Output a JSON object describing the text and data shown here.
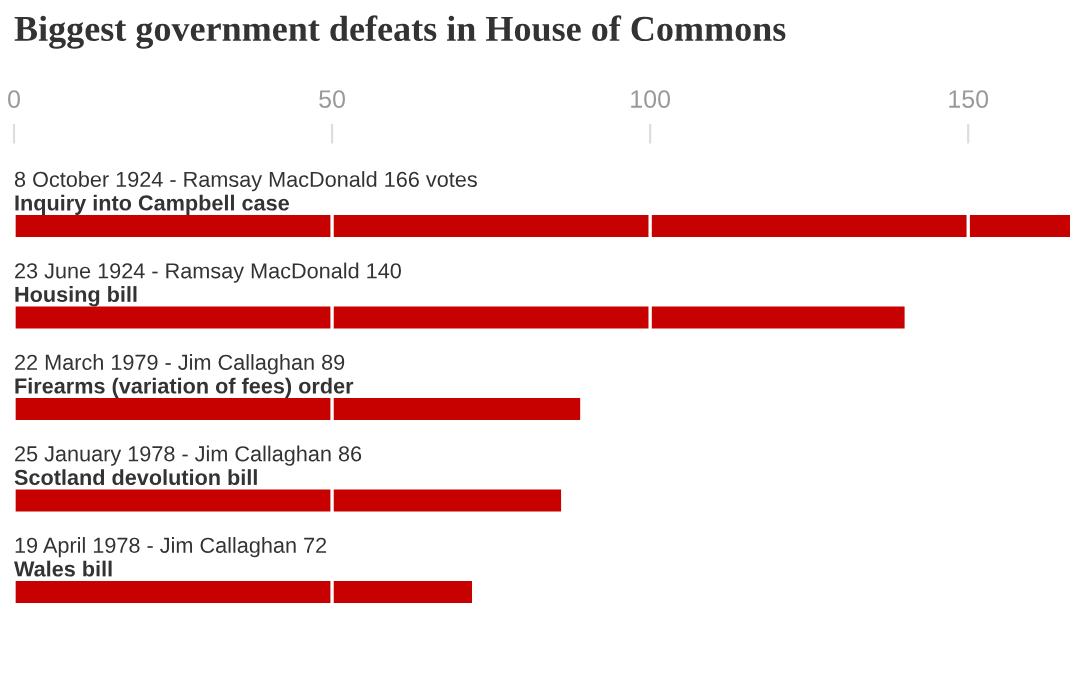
{
  "chart_data": {
    "type": "bar",
    "orientation": "horizontal",
    "title": "Biggest government defeats in House of Commons",
    "categories": [
      "8 October 1924 - Ramsay MacDonald 166 votes\nInquiry into Campbell case",
      "23 June 1924 - Ramsay MacDonald 140\nHousing bill",
      "22 March 1979 - Jim Callaghan 89\nFirearms (variation of fees) order",
      "25 January 1978 - Jim Callaghan 86\nScotland devolution bill",
      "19 April 1978 - Jim Callaghan 72\nWales bill"
    ],
    "values": [
      166,
      140,
      89,
      86,
      72
    ],
    "color": "#c70000",
    "xlim": [
      0,
      166
    ],
    "xticks": [
      0,
      50,
      100,
      150
    ],
    "grid": "x"
  }
}
